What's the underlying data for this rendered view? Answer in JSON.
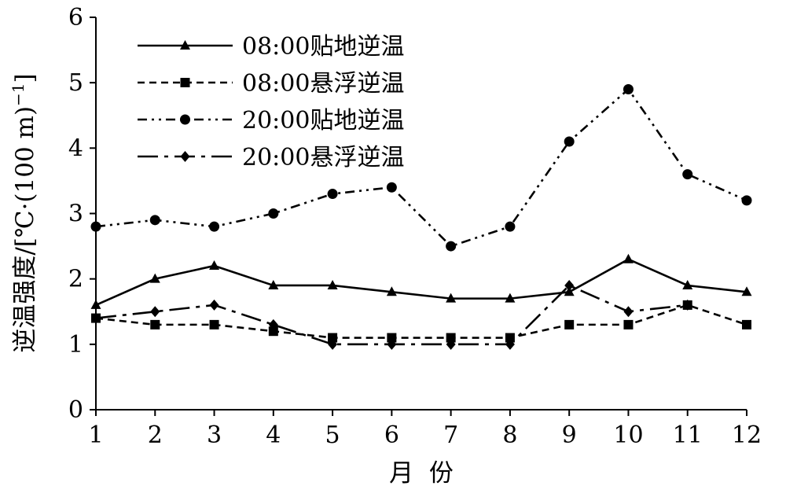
{
  "chart_data": {
    "type": "line",
    "x": [
      1,
      2,
      3,
      4,
      5,
      6,
      7,
      8,
      9,
      10,
      11,
      12
    ],
    "xlabel": "月  份",
    "ylabel": "逆温强度/[℃·(100 m)",
    "ylabel_sup": "−1",
    "ylabel_end": "]",
    "xlim": [
      1,
      12
    ],
    "ylim": [
      0,
      6
    ],
    "yticks": [
      0,
      1,
      2,
      3,
      4,
      5,
      6
    ],
    "grid": false,
    "legend_position": "top-left",
    "series": [
      {
        "name": "08:00贴地逆温",
        "marker": "triangle",
        "dash": "solid",
        "values": [
          1.6,
          2.0,
          2.2,
          1.9,
          1.9,
          1.8,
          1.7,
          1.7,
          1.8,
          2.3,
          1.9,
          1.8
        ]
      },
      {
        "name": "08:00悬浮逆温",
        "marker": "square",
        "dash": "dashed",
        "values": [
          1.4,
          1.3,
          1.3,
          1.2,
          1.1,
          1.1,
          1.1,
          1.1,
          1.3,
          1.3,
          1.6,
          1.3
        ]
      },
      {
        "name": "20:00贴地逆温",
        "marker": "circle",
        "dash": "dash-dot-dot",
        "values": [
          2.8,
          2.9,
          2.8,
          3.0,
          3.3,
          3.4,
          2.5,
          2.8,
          4.1,
          4.9,
          3.6,
          3.2
        ]
      },
      {
        "name": "20:00悬浮逆温",
        "marker": "diamond",
        "dash": "long-dash-dot",
        "values": [
          1.4,
          1.5,
          1.6,
          1.3,
          1.0,
          1.0,
          1.0,
          1.0,
          1.9,
          1.5,
          1.6,
          null
        ]
      }
    ]
  }
}
